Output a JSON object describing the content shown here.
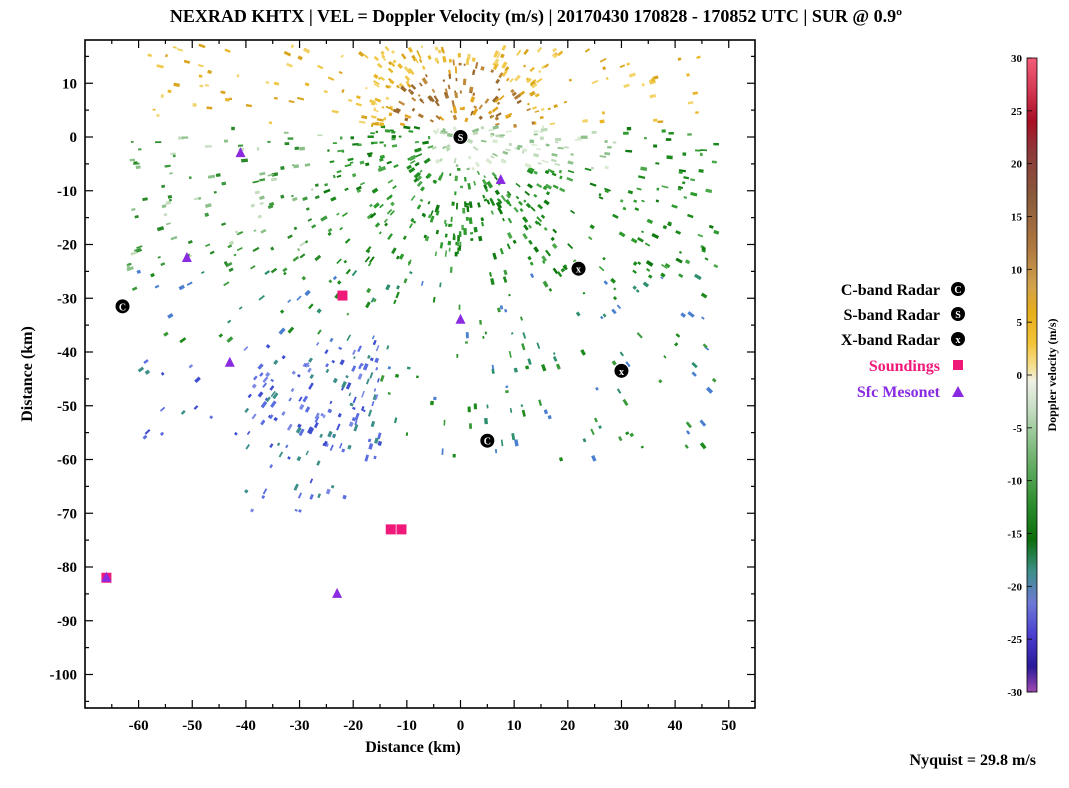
{
  "chart_data": {
    "type": "scatter",
    "title": "NEXRAD KHTX | VEL = Doppler Velocity (m/s) | 20170430 170828 - 170852 UTC | SUR @ 0.9º",
    "xlabel": "Distance (km)",
    "ylabel": "Distance (km)",
    "xlim": [
      -70,
      55
    ],
    "ylim": [
      -107,
      18
    ],
    "xticks": [
      -60,
      -50,
      -40,
      -30,
      -20,
      -10,
      0,
      10,
      20,
      30,
      40,
      50
    ],
    "yticks": [
      10,
      0,
      -10,
      -20,
      -30,
      -40,
      -50,
      -60,
      -70,
      -80,
      -90,
      -100
    ],
    "grid": false,
    "legend_position": "right",
    "series": [
      {
        "name": "C-band Radar",
        "marker": "circle-C",
        "color": "#000000",
        "points": [
          [
            -63,
            -31.5
          ],
          [
            5,
            -56.5
          ]
        ]
      },
      {
        "name": "S-band Radar",
        "marker": "circle-S",
        "color": "#000000",
        "points": [
          [
            0,
            0
          ]
        ]
      },
      {
        "name": "X-band Radar",
        "marker": "circle-X",
        "color": "#000000",
        "points": [
          [
            22,
            -24.5
          ],
          [
            30,
            -43.5
          ]
        ]
      },
      {
        "name": "Soundings",
        "marker": "square",
        "color": "#f0197a",
        "points": [
          [
            -22,
            -29.5
          ],
          [
            -13,
            -73
          ],
          [
            -11,
            -73
          ],
          [
            -66,
            -82
          ]
        ]
      },
      {
        "name": "Sfc Mesonet",
        "marker": "triangle",
        "color": "#8a2be2",
        "points": [
          [
            -41,
            -3
          ],
          [
            7.5,
            -8
          ],
          [
            -51,
            -22.5
          ],
          [
            0,
            -34
          ],
          [
            -43,
            -42
          ],
          [
            -23,
            -85
          ],
          [
            -66,
            -82
          ]
        ]
      }
    ],
    "colorbar": {
      "label": "Doppler velocity (m/s)",
      "range": [
        -30,
        30
      ],
      "ticks": [
        30,
        25,
        20,
        15,
        10,
        5,
        0,
        -5,
        -10,
        -15,
        -20,
        -25,
        -30
      ]
    },
    "annotation": "Nyquist = 29.8 m/s"
  },
  "colors": {
    "axis": "#000000",
    "sounding": "#f0197a",
    "mesonet": "#8a2be2"
  }
}
